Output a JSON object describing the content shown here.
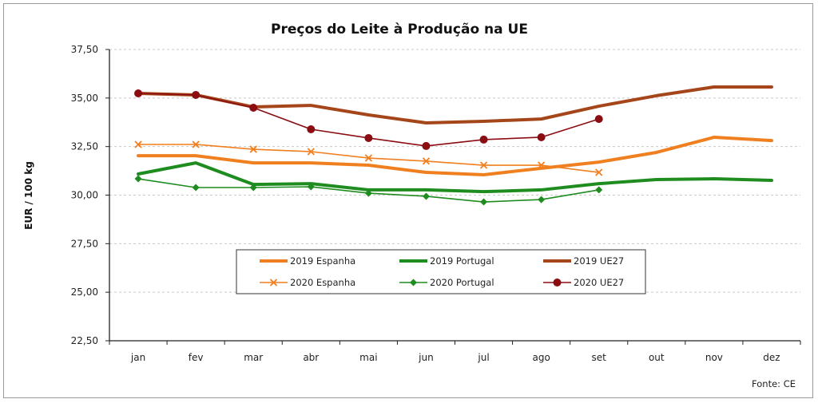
{
  "chart_data": {
    "type": "line",
    "title": "Preços do Leite à Produção na UE",
    "xlabel": "",
    "ylabel": "EUR / 100 kg",
    "ylim": [
      22.5,
      37.5
    ],
    "yticks": [
      "22,50",
      "25,00",
      "27,50",
      "30,00",
      "32,50",
      "35,00",
      "37,50"
    ],
    "ytick_values": [
      22.5,
      25,
      27.5,
      30,
      32.5,
      35,
      37.5
    ],
    "grid": "horizontal-dashed",
    "categories": [
      "jan",
      "fev",
      "mar",
      "abr",
      "mai",
      "jun",
      "jul",
      "ago",
      "set",
      "out",
      "nov",
      "dez"
    ],
    "legend_position": "inside-bottom-center",
    "source": "Fonte: CE",
    "series": [
      {
        "name": "2019 Espanha",
        "color": "#f07f1f",
        "style": "thick",
        "marker": "none",
        "values": [
          32.03,
          32.03,
          31.66,
          31.66,
          31.54,
          31.17,
          31.05,
          31.38,
          31.7,
          32.2,
          32.98,
          32.81
        ]
      },
      {
        "name": "2019 Portugal",
        "color": "#1f8c1f",
        "style": "thick",
        "marker": "none",
        "values": [
          31.09,
          31.66,
          30.55,
          30.59,
          30.27,
          30.27,
          30.18,
          30.27,
          30.59,
          30.8,
          30.84,
          30.76
        ]
      },
      {
        "name": "2019 UE27",
        "color": "#a5461a",
        "style": "thick",
        "marker": "none",
        "values": [
          35.24,
          35.16,
          34.54,
          34.62,
          34.13,
          33.72,
          33.8,
          33.92,
          34.58,
          35.12,
          35.57,
          35.57
        ]
      },
      {
        "name": "2020 Espanha",
        "color": "#f07f1f",
        "style": "thin",
        "marker": "x",
        "values": [
          32.61,
          32.61,
          32.36,
          32.24,
          31.91,
          31.75,
          31.54,
          31.54,
          31.17
        ]
      },
      {
        "name": "2020 Portugal",
        "color": "#1f8c1f",
        "style": "thin",
        "marker": "diamond",
        "values": [
          30.84,
          30.39,
          30.39,
          30.43,
          30.1,
          29.94,
          29.65,
          29.77,
          30.27
        ]
      },
      {
        "name": "2020 UE27",
        "color": "#8b0d12",
        "style": "thin",
        "marker": "circle",
        "values": [
          35.24,
          35.16,
          34.5,
          33.39,
          32.94,
          32.53,
          32.86,
          32.98,
          33.92
        ]
      }
    ]
  }
}
